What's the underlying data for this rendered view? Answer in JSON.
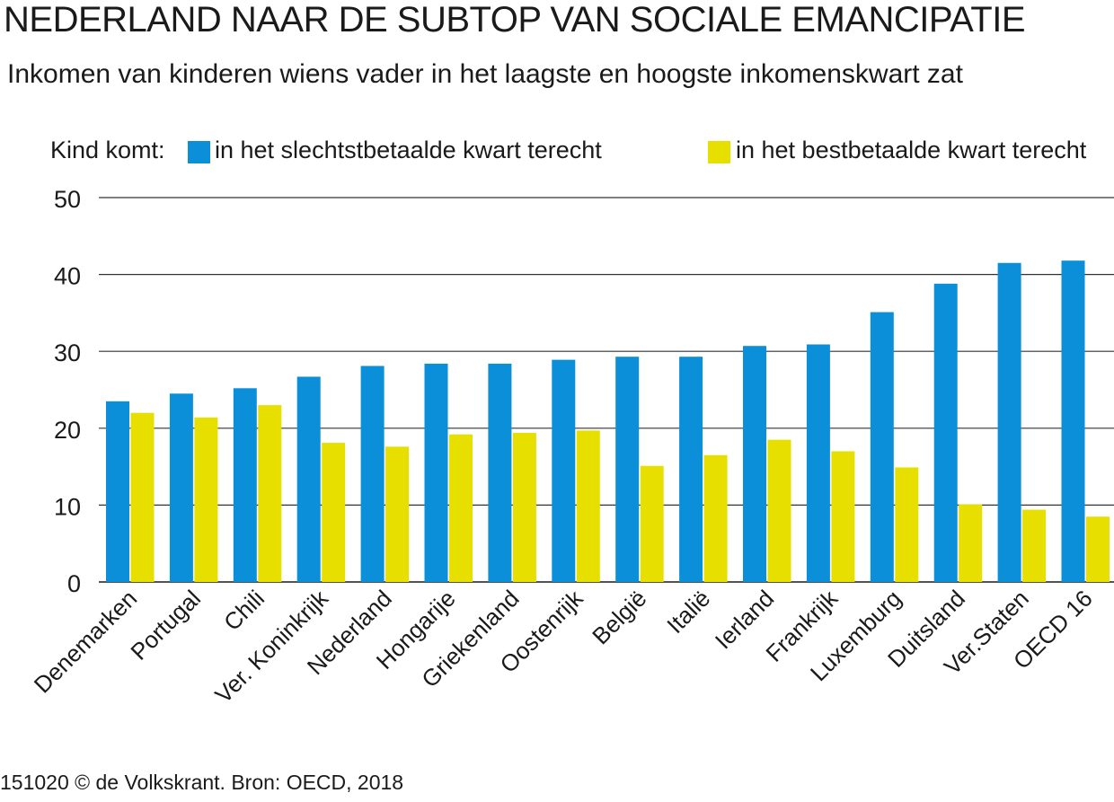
{
  "title": "NEDERLAND NAAR DE SUBTOP VAN SOCIALE EMANCIPATIE",
  "subtitle": "Inkomen van kinderen wiens vader in het laagste en hoogste inkomenskwart zat",
  "legend": {
    "prefix": "Kind komt:",
    "items": [
      {
        "label": "in het slechtstbetaalde kwart terecht",
        "color": "#0a8fd8"
      },
      {
        "label": "in het bestbetaalde kwart terecht",
        "color": "#e6df00"
      }
    ]
  },
  "source": "151020 © de Volkskrant. Bron: OECD, 2018",
  "chart_data": {
    "type": "bar",
    "categories": [
      "Denemarken",
      "Portugal",
      "Chili",
      "Ver. Koninkrijk",
      "Nederland",
      "Hongarije",
      "Griekenland",
      "Oostenrijk",
      "België",
      "Italië",
      "Ierland",
      "Frankrijk",
      "Luxemburg",
      "Duitsland",
      "Ver.Staten",
      "OECD 16"
    ],
    "series": [
      {
        "name": "in het slechtstbetaalde kwart terecht",
        "color": "#0a8fd8",
        "values": [
          23.5,
          24.5,
          25.2,
          26.7,
          28.1,
          28.4,
          28.4,
          28.9,
          29.3,
          29.3,
          30.7,
          30.9,
          35.1,
          38.8,
          41.5,
          41.8
        ]
      },
      {
        "name": "in het bestbetaalde kwart terecht",
        "color": "#e6df00",
        "values": [
          22.0,
          21.4,
          23.0,
          18.1,
          17.6,
          19.2,
          19.4,
          19.7,
          15.1,
          16.5,
          18.5,
          17.0,
          14.9,
          10.1,
          9.4,
          8.5
        ]
      }
    ],
    "yticks": [
      0,
      10,
      20,
      30,
      40,
      50
    ],
    "ylim": [
      0,
      50
    ],
    "grid": true,
    "legend_position": "top"
  }
}
